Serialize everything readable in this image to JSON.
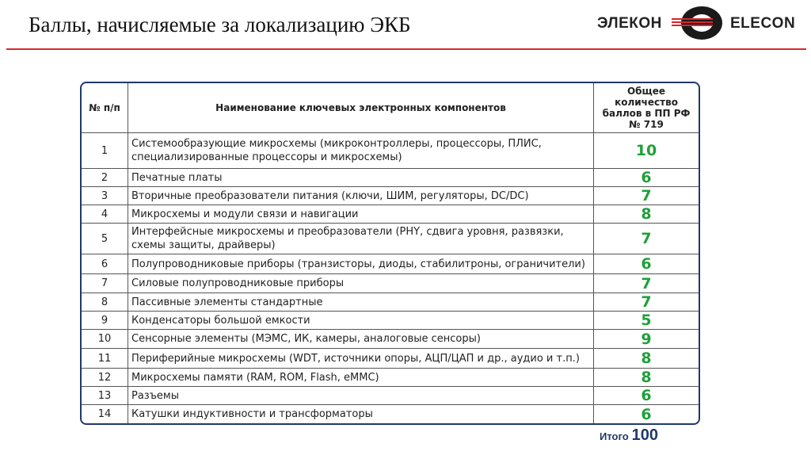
{
  "title": "Баллы, начисляемые за локализацию ЭКБ",
  "logo": {
    "ru": "ЭЛЕКОН",
    "en": "ELECON"
  },
  "colors": {
    "accent_red": "#d8262c",
    "score_green": "#1ea03a",
    "border_navy": "#1f3a6b"
  },
  "table": {
    "headers": [
      "№ п/п",
      "Наименование ключевых электронных компонентов",
      "Общее количество баллов в ПП РФ № 719"
    ],
    "rows": [
      {
        "num": "1",
        "name": "Системообразующие микросхемы (микроконтроллеры, процессоры, ПЛИС, специализированные процессоры и микросхемы)",
        "score": "10"
      },
      {
        "num": "2",
        "name": "Печатные платы",
        "score": "6"
      },
      {
        "num": "3",
        "name": "Вторичные преобразователи питания (ключи, ШИМ, регуляторы, DC/DC)",
        "score": "7"
      },
      {
        "num": "4",
        "name": "Микросхемы и модули связи и навигации",
        "score": "8"
      },
      {
        "num": "5",
        "name": "Интерфейсные микросхемы и преобразователи (PHY, сдвига уровня, развязки, схемы защиты, драйверы)",
        "score": "7"
      },
      {
        "num": "6",
        "name": "Полупроводниковые приборы (транзисторы, диоды, стабилитроны, ограничители)",
        "score": "6"
      },
      {
        "num": "7",
        "name": "Силовые  полупроводниковые приборы",
        "score": "7"
      },
      {
        "num": "8",
        "name": "Пассивные элементы стандартные",
        "score": "7"
      },
      {
        "num": "9",
        "name": "Конденсаторы большой емкости",
        "score": "5"
      },
      {
        "num": "10",
        "name": "Сенсорные элементы (МЭМС, ИК, камеры, аналоговые сенсоры)",
        "score": "9"
      },
      {
        "num": "11",
        "name": "Периферийные микросхемы (WDT, источники опоры, АЦП/ЦАП и др., аудио и т.п.)",
        "score": "8"
      },
      {
        "num": "12",
        "name": "Микросхемы памяти (RAM, ROM, Flash, eMMC)",
        "score": "8"
      },
      {
        "num": "13",
        "name": "Разъемы",
        "score": "6"
      },
      {
        "num": "14",
        "name": "Катушки индуктивности и трансформаторы",
        "score": "6"
      }
    ]
  },
  "total": {
    "label": "Итого",
    "value": "100"
  }
}
